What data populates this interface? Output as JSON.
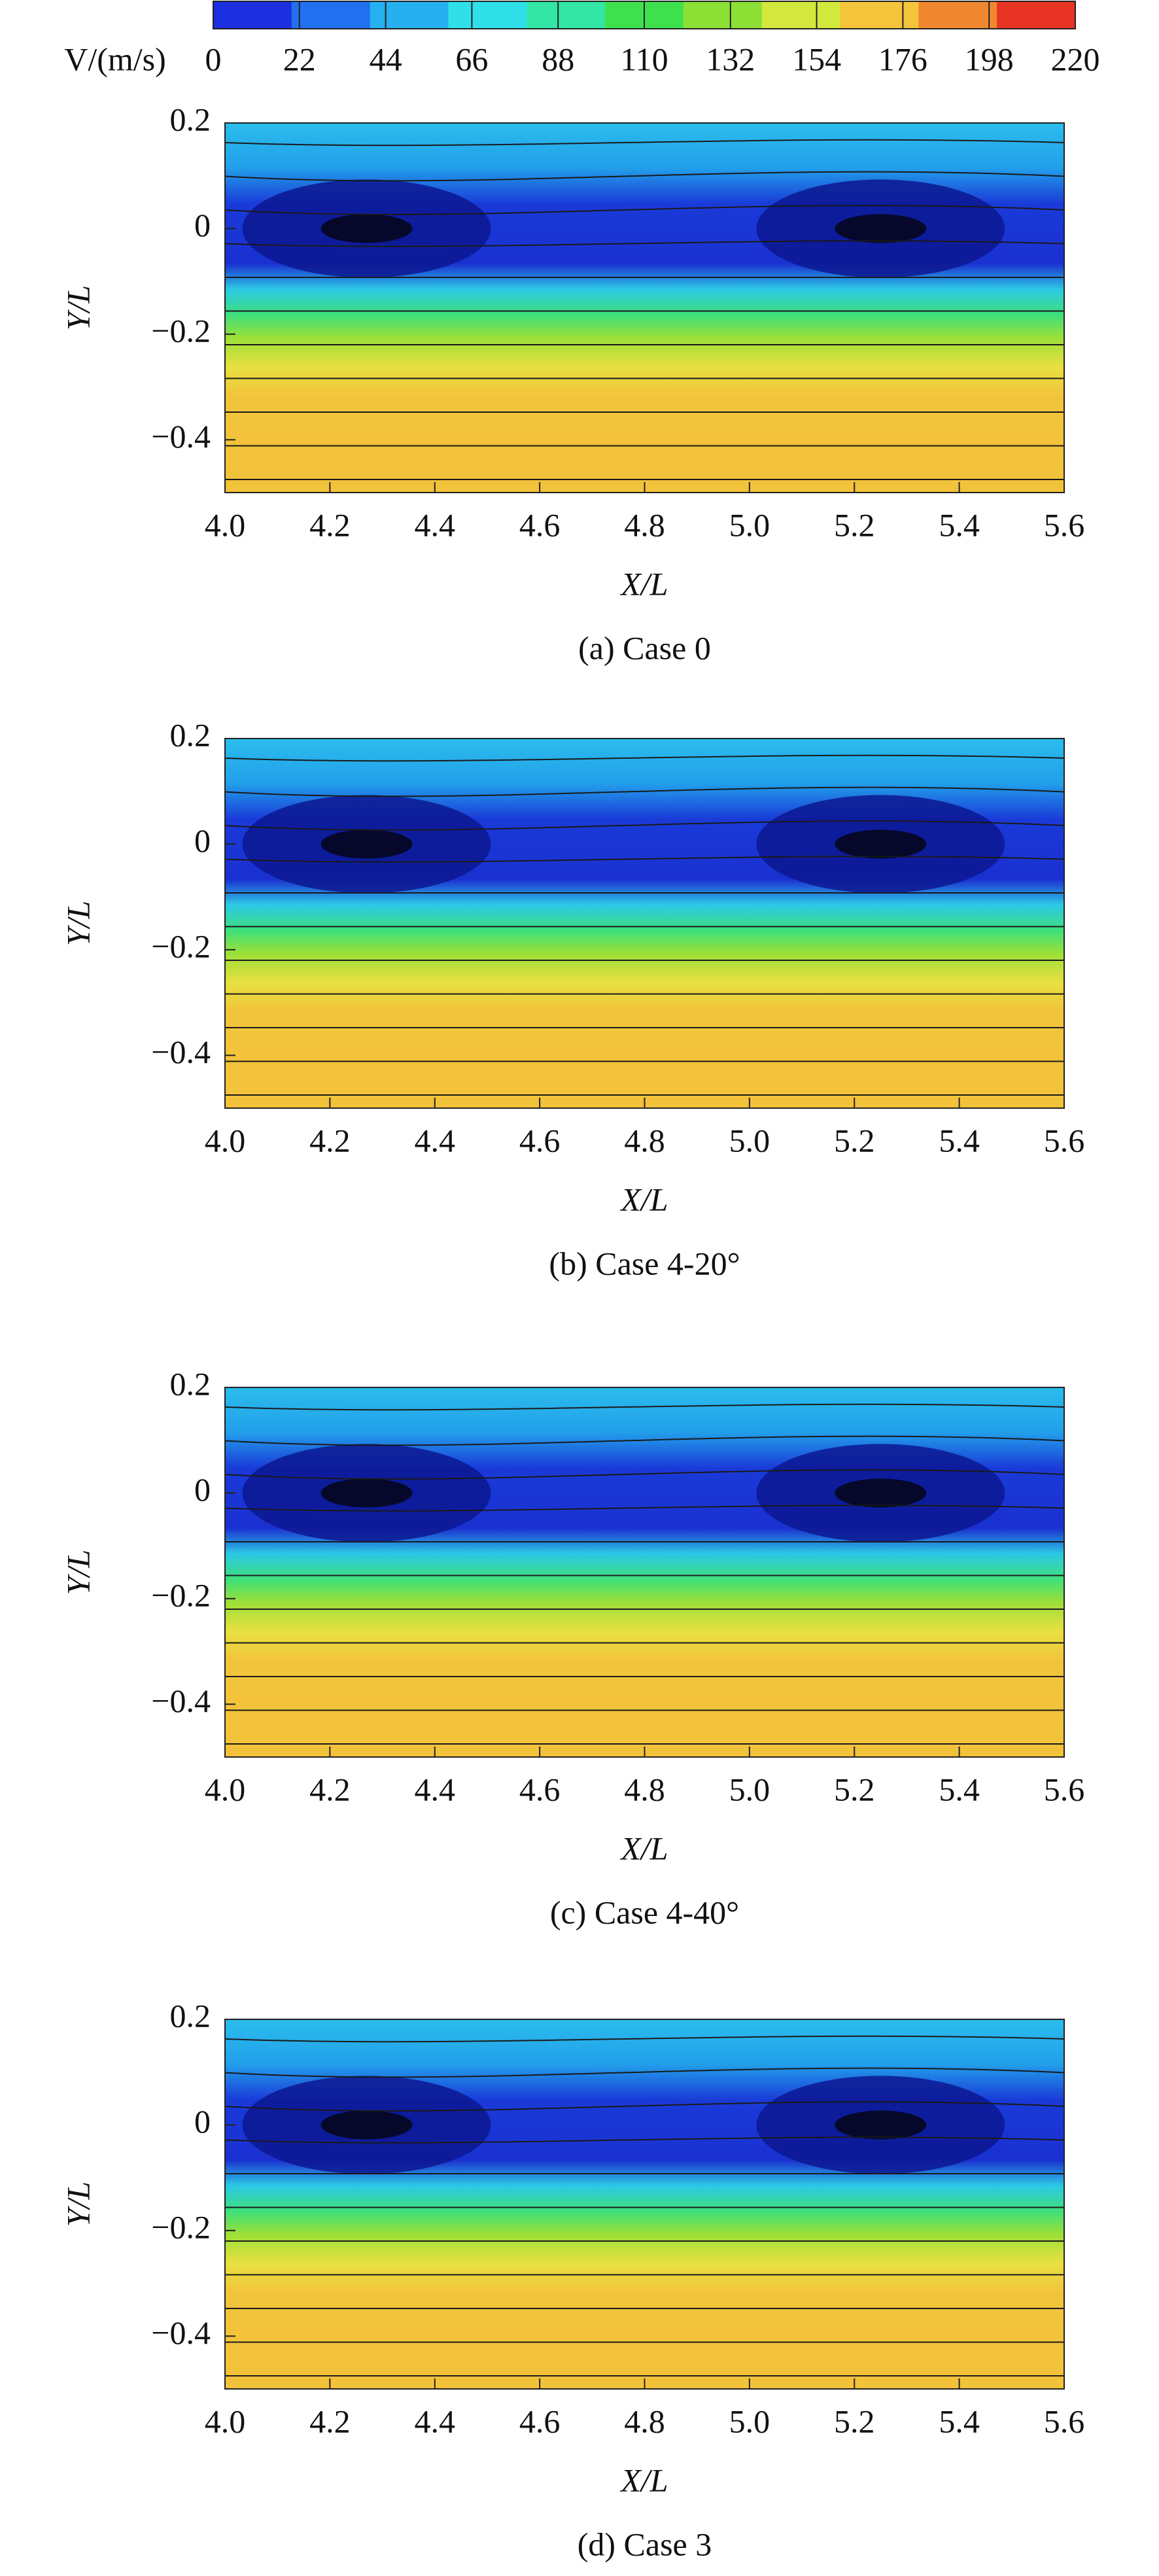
{
  "colorbar": {
    "label": "V/(m/s)",
    "clim": [
      0,
      220
    ],
    "ticks": [
      0,
      22,
      44,
      66,
      88,
      110,
      132,
      154,
      176,
      198,
      220
    ],
    "colors": [
      "#1c30e0",
      "#2170f0",
      "#27b0f0",
      "#2fe0e8",
      "#33e6a6",
      "#3fe04e",
      "#8ce035",
      "#d2e83c",
      "#f4c43a",
      "#f08830",
      "#e83424"
    ]
  },
  "chart_data": [
    {
      "type": "contour",
      "caption": "(a) Case 0",
      "xlabel": "X/L",
      "ylabel": "Y/L",
      "xlim": [
        4.0,
        5.6
      ],
      "ylim": [
        -0.5,
        0.2
      ],
      "xticks": [
        {
          "value": 4.0,
          "label": "4.0"
        },
        4.2,
        4.4,
        4.6,
        4.8,
        {
          "value": 5.0,
          "label": "5.0"
        },
        5.2,
        5.4,
        5.6
      ],
      "yticks": [
        0.2,
        0,
        {
          "value": -0.2,
          "label": "−0.2"
        },
        {
          "value": -0.4,
          "label": "−0.4"
        }
      ]
    },
    {
      "type": "contour",
      "caption": "(b) Case 4-20°",
      "xlabel": "X/L",
      "ylabel": "Y/L",
      "xlim": [
        4.0,
        5.6
      ],
      "ylim": [
        -0.5,
        0.2
      ],
      "xticks": [
        {
          "value": 4.0,
          "label": "4.0"
        },
        4.2,
        4.4,
        4.6,
        4.8,
        {
          "value": 5.0,
          "label": "5.0"
        },
        5.2,
        5.4,
        5.6
      ],
      "yticks": [
        0.2,
        0,
        {
          "value": -0.2,
          "label": "−0.2"
        },
        {
          "value": -0.4,
          "label": "−0.4"
        }
      ]
    },
    {
      "type": "contour",
      "caption": "(c) Case 4-40°",
      "xlabel": "X/L",
      "ylabel": "Y/L",
      "xlim": [
        4.0,
        5.6
      ],
      "ylim": [
        -0.5,
        0.2
      ],
      "xticks": [
        {
          "value": 4.0,
          "label": "4.0"
        },
        4.2,
        4.4,
        4.6,
        4.8,
        {
          "value": 5.0,
          "label": "5.0"
        },
        5.2,
        5.4,
        5.6
      ],
      "yticks": [
        0.2,
        0,
        {
          "value": -0.2,
          "label": "−0.2"
        },
        {
          "value": -0.4,
          "label": "−0.4"
        }
      ]
    },
    {
      "type": "contour",
      "caption": "(d) Case 3",
      "xlabel": "X/L",
      "ylabel": "Y/L",
      "xlim": [
        4.0,
        5.6
      ],
      "ylim": [
        -0.5,
        0.2
      ],
      "xticks": [
        {
          "value": 4.0,
          "label": "4.0"
        },
        4.2,
        4.4,
        4.6,
        4.8,
        {
          "value": 5.0,
          "label": "5.0"
        },
        5.2,
        5.4,
        5.6
      ],
      "yticks": [
        0.2,
        0,
        {
          "value": -0.2,
          "label": "−0.2"
        },
        {
          "value": -0.4,
          "label": "−0.4"
        }
      ]
    }
  ]
}
